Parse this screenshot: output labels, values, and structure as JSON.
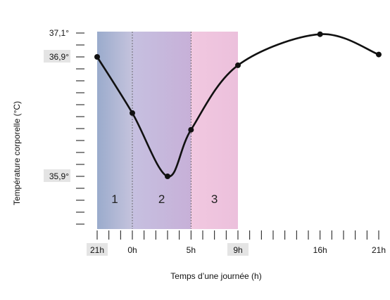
{
  "chart_data": {
    "type": "line",
    "xlabel": "Temps d’une journée (h)",
    "ylabel": "Température corporelle (°C)",
    "x_range_hours": [
      0,
      24
    ],
    "ylim": [
      35.5,
      37.1
    ],
    "x_tick_labels": [
      {
        "hour": 0,
        "label": "21h",
        "highlight": true
      },
      {
        "hour": 3,
        "label": "0h",
        "highlight": false
      },
      {
        "hour": 8,
        "label": "5h",
        "highlight": false
      },
      {
        "hour": 12,
        "label": "9h",
        "highlight": true
      },
      {
        "hour": 19,
        "label": "16h",
        "highlight": false
      },
      {
        "hour": 24,
        "label": "21h",
        "highlight": false
      }
    ],
    "x_minor_ticks_every_hours": 1,
    "y_tick_labels": [
      {
        "value": 37.1,
        "label": "37,1°",
        "highlight": false
      },
      {
        "value": 36.9,
        "label": "36,9°",
        "highlight": true
      },
      {
        "value": 35.9,
        "label": "35,9°",
        "highlight": true
      }
    ],
    "y_minor_ticks_every": 0.1,
    "zones": [
      {
        "label": "1",
        "from_hour": 0,
        "to_hour": 3,
        "color_start": "#9aabcc",
        "color_end": "#c5c3dd"
      },
      {
        "label": "2",
        "from_hour": 3,
        "to_hour": 8,
        "color_start": "#c6c0e0",
        "color_end": "#c7b0d8"
      },
      {
        "label": "3",
        "from_hour": 8,
        "to_hour": 12,
        "color_start": "#f1c8e0",
        "color_end": "#ecc0dc"
      }
    ],
    "series": [
      {
        "color": "#111111",
        "points": [
          {
            "hour": 0,
            "value": 36.9
          },
          {
            "hour": 3,
            "value": 36.43
          },
          {
            "hour": 6,
            "value": 35.9
          },
          {
            "hour": 8,
            "value": 36.29
          },
          {
            "hour": 12,
            "value": 36.83
          },
          {
            "hour": 19,
            "value": 37.09
          },
          {
            "hour": 24,
            "value": 36.92
          }
        ]
      }
    ]
  }
}
